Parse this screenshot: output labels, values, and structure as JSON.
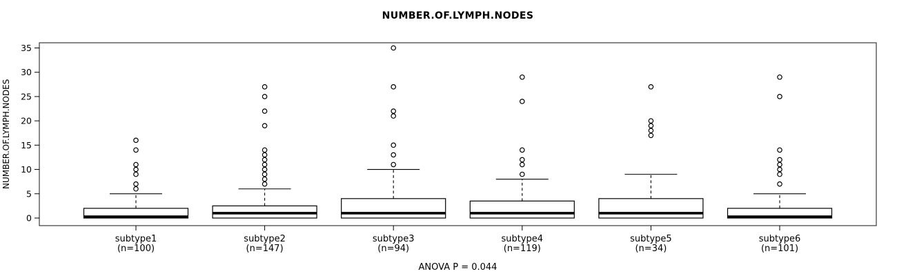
{
  "header": {
    "title": "NUMBER.OF.LYMPH.NODES"
  },
  "axes": {
    "y_label": "NUMBER.OF.LYMPH.NODES"
  },
  "footer": {
    "anova_text": "ANOVA P = 0.044"
  },
  "chart_data": {
    "type": "boxplot",
    "title": "NUMBER.OF.LYMPH.NODES",
    "xlabel": "",
    "ylabel": "NUMBER.OF.LYMPH.NODES",
    "ylim": [
      0,
      35
    ],
    "yticks": [
      0,
      5,
      10,
      15,
      20,
      25,
      30,
      35
    ],
    "grid": false,
    "legend": false,
    "annotation": "ANOVA P = 0.044",
    "colors": {
      "line": "#000000",
      "box_fill": "#ffffff",
      "background": "#ffffff"
    },
    "groups": [
      {
        "label": "subtype1",
        "sublabel": "(n=100)",
        "n": 100,
        "whisker_low": 0,
        "q1": 0,
        "median": 0,
        "q3": 2,
        "whisker_high": 5,
        "outliers": [
          6,
          7,
          9,
          10,
          11,
          14,
          16
        ]
      },
      {
        "label": "subtype2",
        "sublabel": "(n=147)",
        "n": 147,
        "whisker_low": 0,
        "q1": 0,
        "median": 1,
        "q3": 2.5,
        "whisker_high": 6,
        "outliers": [
          7,
          8,
          9,
          10,
          11,
          12,
          13,
          14,
          19,
          22,
          25,
          27
        ]
      },
      {
        "label": "subtype3",
        "sublabel": "(n=94)",
        "n": 94,
        "whisker_low": 0,
        "q1": 0,
        "median": 1,
        "q3": 4,
        "whisker_high": 10,
        "outliers": [
          11,
          13,
          15,
          21,
          22,
          27,
          35
        ]
      },
      {
        "label": "subtype4",
        "sublabel": "(n=119)",
        "n": 119,
        "whisker_low": 0,
        "q1": 0,
        "median": 1,
        "q3": 3.5,
        "whisker_high": 8,
        "outliers": [
          9,
          11,
          12,
          14,
          24,
          29
        ]
      },
      {
        "label": "subtype5",
        "sublabel": "(n=34)",
        "n": 34,
        "whisker_low": 0,
        "q1": 0,
        "median": 1,
        "q3": 4,
        "whisker_high": 9,
        "outliers": [
          17,
          18,
          19,
          20,
          27
        ]
      },
      {
        "label": "subtype6",
        "sublabel": "(n=101)",
        "n": 101,
        "whisker_low": 0,
        "q1": 0,
        "median": 0,
        "q3": 2,
        "whisker_high": 5,
        "outliers": [
          7,
          9,
          10,
          11,
          12,
          14,
          25,
          29
        ]
      }
    ]
  }
}
